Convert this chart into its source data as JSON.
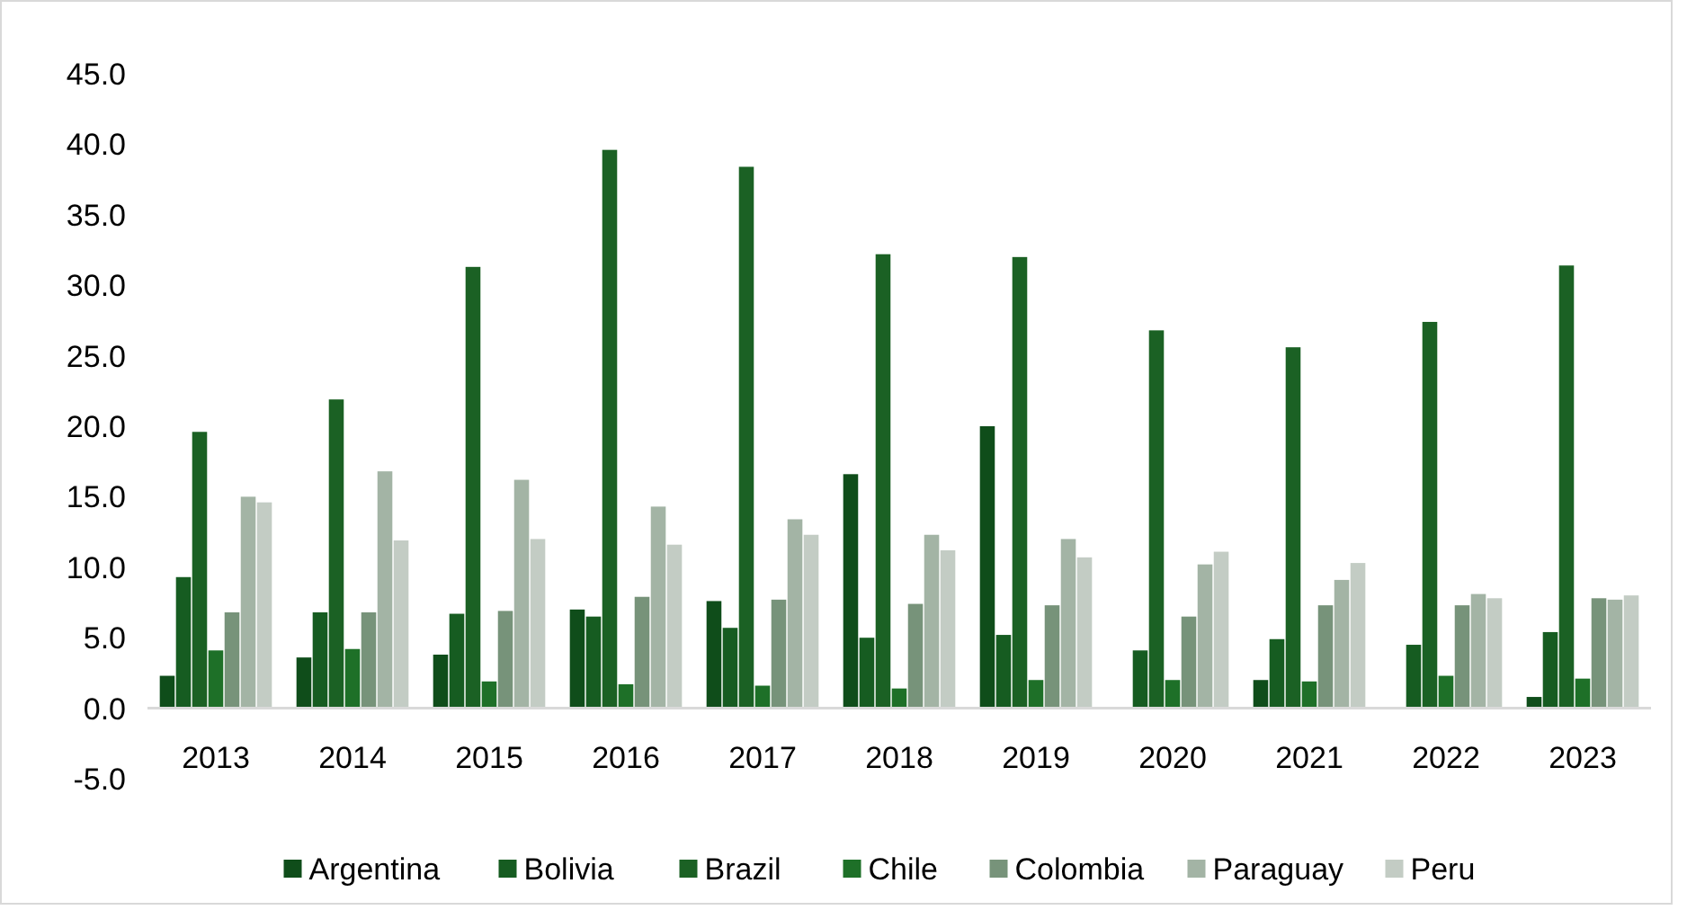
{
  "chart_data": {
    "type": "bar",
    "categories": [
      "2013",
      "2014",
      "2015",
      "2016",
      "2017",
      "2018",
      "2019",
      "2020",
      "2021",
      "2022",
      "2023"
    ],
    "series": [
      {
        "name": "Argentina",
        "color": "#0f4d1a",
        "values": [
          2.3,
          3.6,
          3.8,
          7.0,
          7.6,
          16.6,
          20.0,
          null,
          2.0,
          null,
          0.8
        ]
      },
      {
        "name": "Bolivia",
        "color": "#165c21",
        "values": [
          9.3,
          6.8,
          6.7,
          6.5,
          5.7,
          5.0,
          5.2,
          4.1,
          4.9,
          4.5,
          5.4
        ]
      },
      {
        "name": "Brazil",
        "color": "#1b6124",
        "values": [
          19.6,
          21.9,
          31.3,
          39.6,
          38.4,
          32.2,
          32.0,
          26.8,
          25.6,
          27.4,
          31.4
        ]
      },
      {
        "name": "Chile",
        "color": "#1e7028",
        "values": [
          4.1,
          4.2,
          1.9,
          1.7,
          1.6,
          1.4,
          2.0,
          2.0,
          1.9,
          2.3,
          2.1
        ]
      },
      {
        "name": "Colombia",
        "color": "#77937a",
        "values": [
          6.8,
          6.8,
          6.9,
          7.9,
          7.7,
          7.4,
          7.3,
          6.5,
          7.3,
          7.3,
          7.8
        ]
      },
      {
        "name": "Paraguay",
        "color": "#a3b4a5",
        "values": [
          15.0,
          16.8,
          16.2,
          14.3,
          13.4,
          12.3,
          12.0,
          10.2,
          9.1,
          8.1,
          7.7
        ]
      },
      {
        "name": "Peru",
        "color": "#c3ccc4",
        "values": [
          14.6,
          11.9,
          12.0,
          11.6,
          12.3,
          11.2,
          10.7,
          11.1,
          10.3,
          7.8,
          8.0
        ]
      }
    ],
    "ylim": [
      -5,
      45
    ],
    "yticks": [
      {
        "value": -5,
        "label": "-5.0"
      },
      {
        "value": 0,
        "label": "0.0"
      },
      {
        "value": 5,
        "label": "5.0"
      },
      {
        "value": 10,
        "label": "10.0"
      },
      {
        "value": 15,
        "label": "15.0"
      },
      {
        "value": 20,
        "label": "20.0"
      },
      {
        "value": 25,
        "label": "25.0"
      },
      {
        "value": 30,
        "label": "30.0"
      },
      {
        "value": 35,
        "label": "35.0"
      },
      {
        "value": 40,
        "label": "40.0"
      },
      {
        "value": 45,
        "label": "45.0"
      }
    ],
    "grid": false,
    "legend": "bottom"
  }
}
